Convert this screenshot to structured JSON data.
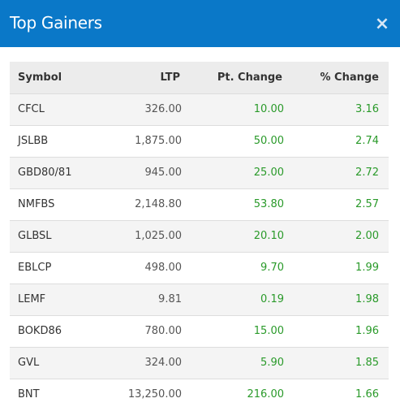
{
  "modal": {
    "title": "Top Gainers",
    "close_icon": "close-icon",
    "close_glyph": "×"
  },
  "table": {
    "columns": [
      "Symbol",
      "LTP",
      "Pt. Change",
      "% Change"
    ],
    "rows": [
      {
        "symbol": "CFCL",
        "ltp": "326.00",
        "pt_change": "10.00",
        "pct_change": "3.16"
      },
      {
        "symbol": "JSLBB",
        "ltp": "1,875.00",
        "pt_change": "50.00",
        "pct_change": "2.74"
      },
      {
        "symbol": "GBD80/81",
        "ltp": "945.00",
        "pt_change": "25.00",
        "pct_change": "2.72"
      },
      {
        "symbol": "NMFBS",
        "ltp": "2,148.80",
        "pt_change": "53.80",
        "pct_change": "2.57"
      },
      {
        "symbol": "GLBSL",
        "ltp": "1,025.00",
        "pt_change": "20.10",
        "pct_change": "2.00"
      },
      {
        "symbol": "EBLCP",
        "ltp": "498.00",
        "pt_change": "9.70",
        "pct_change": "1.99"
      },
      {
        "symbol": "LEMF",
        "ltp": "9.81",
        "pt_change": "0.19",
        "pct_change": "1.98"
      },
      {
        "symbol": "BOKD86",
        "ltp": "780.00",
        "pt_change": "15.00",
        "pct_change": "1.96"
      },
      {
        "symbol": "GVL",
        "ltp": "324.00",
        "pt_change": "5.90",
        "pct_change": "1.85"
      },
      {
        "symbol": "BNT",
        "ltp": "13,250.00",
        "pt_change": "216.00",
        "pct_change": "1.66"
      }
    ]
  },
  "colors": {
    "header_bg": "#0a78c8",
    "positive": "#2a9a2a",
    "row_alt": "#f4f4f4",
    "table_head_bg": "#ececec"
  }
}
